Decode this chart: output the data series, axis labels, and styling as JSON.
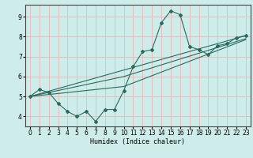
{
  "xlabel": "Humidex (Indice chaleur)",
  "ylabel": "",
  "xlim": [
    -0.5,
    23.5
  ],
  "ylim": [
    3.5,
    9.6
  ],
  "xticks": [
    0,
    1,
    2,
    3,
    4,
    5,
    6,
    7,
    8,
    9,
    10,
    11,
    12,
    13,
    14,
    15,
    16,
    17,
    18,
    19,
    20,
    21,
    22,
    23
  ],
  "yticks": [
    4,
    5,
    6,
    7,
    8,
    9
  ],
  "background_color": "#cdecea",
  "line_color": "#2a6b5e",
  "grid_color": "#e8b8b8",
  "line1_x": [
    0,
    1,
    2,
    3,
    4,
    5,
    6,
    7,
    8,
    9,
    10,
    11,
    12,
    13,
    14,
    15,
    16,
    17,
    18,
    19,
    20,
    21,
    22,
    23
  ],
  "line1_y": [
    5.0,
    5.35,
    5.2,
    4.65,
    4.25,
    4.0,
    4.25,
    3.75,
    4.35,
    4.35,
    5.3,
    6.5,
    7.25,
    7.35,
    8.7,
    9.3,
    9.1,
    7.5,
    7.35,
    7.1,
    7.55,
    7.65,
    7.95,
    8.05
  ],
  "line2_x": [
    0,
    23
  ],
  "line2_y": [
    5.0,
    8.05
  ],
  "line3_x": [
    0,
    10,
    23
  ],
  "line3_y": [
    5.0,
    6.0,
    7.9
  ],
  "line4_x": [
    0,
    10,
    23
  ],
  "line4_y": [
    5.0,
    5.5,
    7.85
  ]
}
